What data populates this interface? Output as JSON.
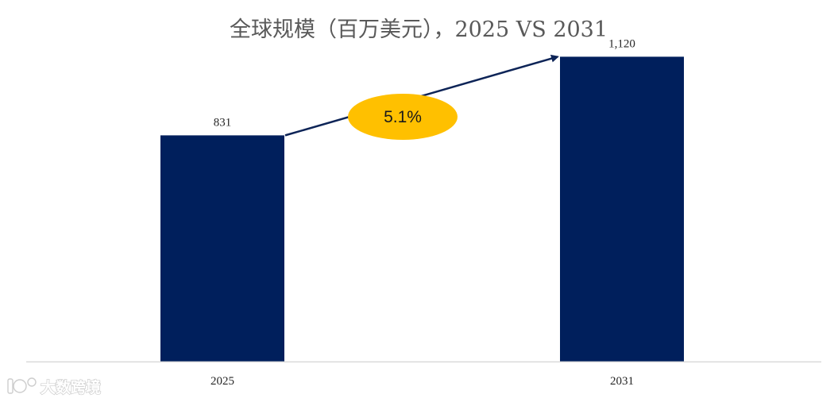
{
  "chart_data": {
    "type": "bar",
    "title": "全球规模（百万美元），2025 VS 2031",
    "categories": [
      "2025",
      "2031"
    ],
    "values": [
      831,
      1120
    ],
    "value_labels": [
      "831",
      "1,120"
    ],
    "ylim": [
      0,
      1200
    ],
    "grid": false,
    "legend": "none",
    "bar_color": "#001f5c",
    "growth_annotation": {
      "text": "5.1%",
      "fill": "#ffc000",
      "arrow_color": "#0d2457"
    }
  },
  "watermark": {
    "text": "大数跨境"
  }
}
